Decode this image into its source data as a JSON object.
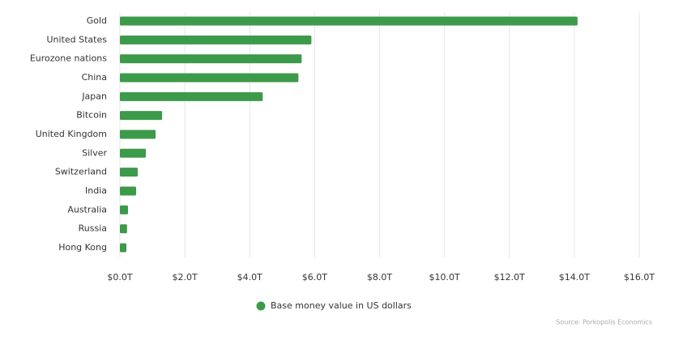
{
  "chart_data": {
    "type": "bar",
    "orientation": "horizontal",
    "categories": [
      "Gold",
      "United States",
      "Eurozone nations",
      "China",
      "Japan",
      "Bitcoin",
      "United Kingdom",
      "Silver",
      "Switzerland",
      "India",
      "Australia",
      "Russia",
      "Hong Kong"
    ],
    "series": [
      {
        "name": "Base money value in US dollars",
        "color": "#3d9a4a",
        "values": [
          14.1,
          5.9,
          5.6,
          5.5,
          4.4,
          1.3,
          1.1,
          0.8,
          0.55,
          0.5,
          0.25,
          0.22,
          0.2
        ]
      }
    ],
    "xlim": [
      0,
      16
    ],
    "xticks": [
      {
        "value": 0,
        "label": "$0.0T"
      },
      {
        "value": 2,
        "label": "$2.0T"
      },
      {
        "value": 4,
        "label": "$4.0T"
      },
      {
        "value": 6,
        "label": "$6.0T"
      },
      {
        "value": 8,
        "label": "$8.0T"
      },
      {
        "value": 10,
        "label": "$10.0T"
      },
      {
        "value": 12,
        "label": "$12.0T"
      },
      {
        "value": 14,
        "label": "$14.0T"
      },
      {
        "value": 16,
        "label": "$16.0T"
      }
    ],
    "grid": true,
    "legend": "bottom",
    "source": "Source: Porkopolis Economics"
  }
}
